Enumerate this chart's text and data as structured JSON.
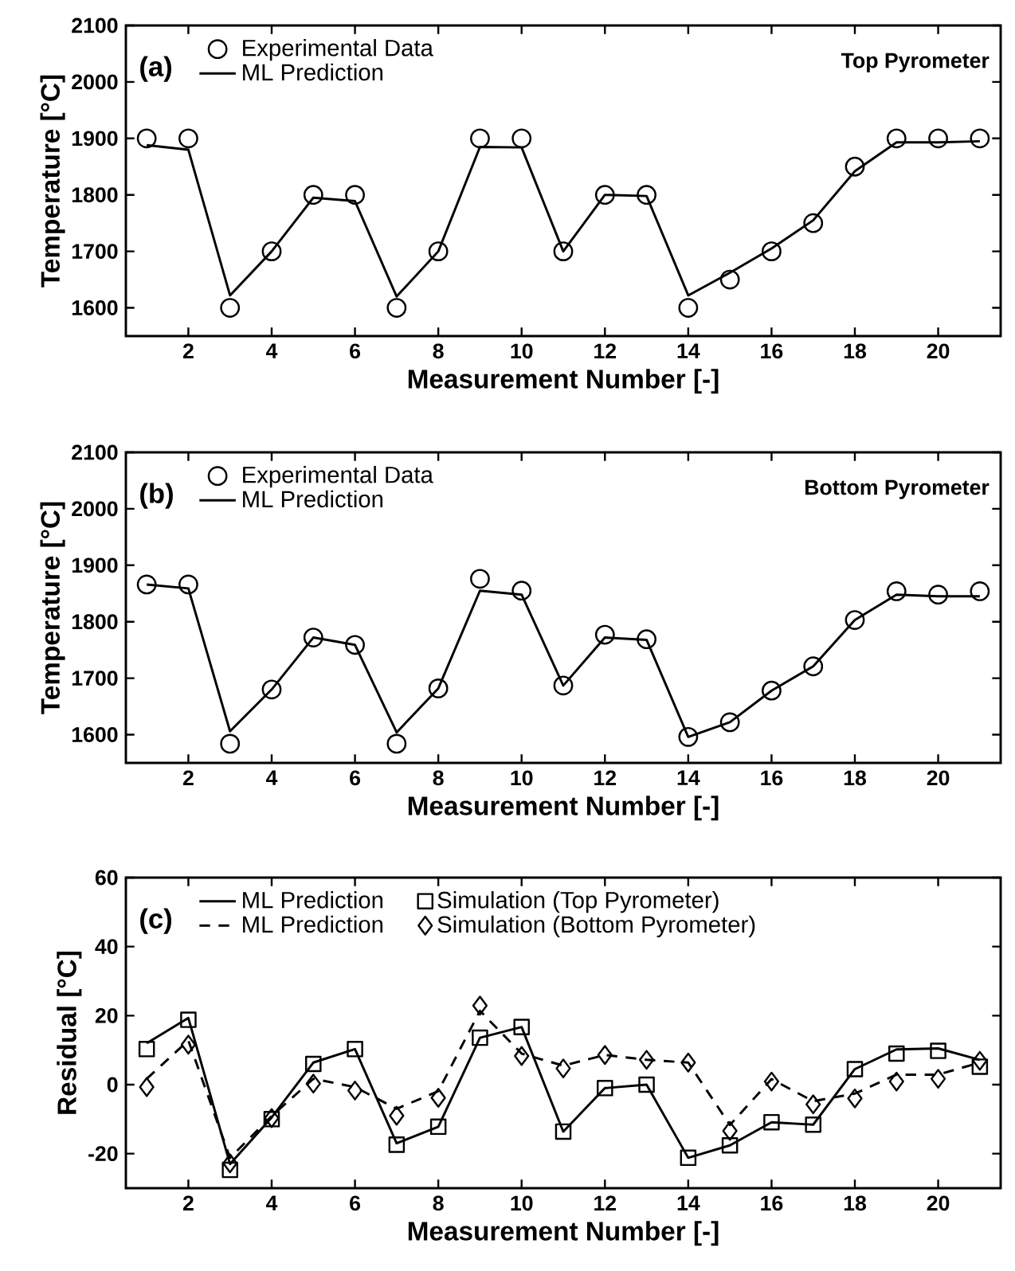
{
  "chart_data": [
    {
      "type": "line",
      "annotations": [
        "(a)",
        "Top Pyrometer"
      ],
      "xlabel": "Measurement Number [-]",
      "ylabel": "Temperature [°C]",
      "x": [
        1,
        2,
        3,
        4,
        5,
        6,
        7,
        8,
        9,
        10,
        11,
        12,
        13,
        14,
        15,
        16,
        17,
        18,
        19,
        20,
        21
      ],
      "xlim": [
        0.5,
        21.5
      ],
      "ylim": [
        1550,
        2100
      ],
      "xticks": [
        2,
        4,
        6,
        8,
        10,
        12,
        14,
        16,
        18,
        20
      ],
      "yticks": [
        1600,
        1700,
        1800,
        1900,
        2000,
        2100
      ],
      "legend": "top left",
      "series": [
        {
          "name": "Experimental Data",
          "type": "scatter",
          "marker": "circle",
          "color": "#000000",
          "values": [
            1900,
            1900,
            1600,
            1700,
            1800,
            1800,
            1600,
            1700,
            1900,
            1900,
            1700,
            1800,
            1800,
            1600,
            1650,
            1700,
            1750,
            1850,
            1900,
            1900,
            1900
          ]
        },
        {
          "name": "ML Prediction",
          "color": "#000000",
          "values": [
            1888,
            1880,
            1622,
            1700,
            1795,
            1789,
            1620,
            1700,
            1885,
            1884,
            1700,
            1800,
            1798,
            1622,
            1662,
            1705,
            1755,
            1842,
            1893,
            1893,
            1895
          ]
        }
      ]
    },
    {
      "type": "line",
      "annotations": [
        "(b)",
        "Bottom Pyrometer"
      ],
      "xlabel": "Measurement Number [-]",
      "ylabel": "Temperature [°C]",
      "x": [
        1,
        2,
        3,
        4,
        5,
        6,
        7,
        8,
        9,
        10,
        11,
        12,
        13,
        14,
        15,
        16,
        17,
        18,
        19,
        20,
        21
      ],
      "xlim": [
        0.5,
        21.5
      ],
      "ylim": [
        1550,
        2100
      ],
      "xticks": [
        2,
        4,
        6,
        8,
        10,
        12,
        14,
        16,
        18,
        20
      ],
      "yticks": [
        1600,
        1700,
        1800,
        1900,
        2000,
        2100
      ],
      "legend": "top left",
      "series": [
        {
          "name": "Experimental Data",
          "type": "scatter",
          "marker": "circle",
          "color": "#000000",
          "values": [
            1866,
            1866,
            1584,
            1680,
            1772,
            1759,
            1584,
            1682,
            1876,
            1855,
            1687,
            1777,
            1769,
            1596,
            1622,
            1678,
            1721,
            1803,
            1854,
            1848,
            1854
          ]
        },
        {
          "name": "ML Prediction",
          "color": "#000000",
          "values": [
            1866,
            1859,
            1606,
            1680,
            1772,
            1759,
            1604,
            1682,
            1855,
            1848,
            1687,
            1772,
            1768,
            1596,
            1622,
            1678,
            1721,
            1803,
            1848,
            1845,
            1845
          ]
        }
      ]
    },
    {
      "type": "line",
      "annotations": [
        "(c)"
      ],
      "xlabel": "Measurement Number [-]",
      "ylabel": "Residual [°C]",
      "x": [
        1,
        2,
        3,
        4,
        5,
        6,
        7,
        8,
        9,
        10,
        11,
        12,
        13,
        14,
        15,
        16,
        17,
        18,
        19,
        20,
        21
      ],
      "xlim": [
        0.5,
        21.5
      ],
      "ylim": [
        -30,
        60
      ],
      "xticks": [
        2,
        4,
        6,
        8,
        10,
        12,
        14,
        16,
        18,
        20
      ],
      "yticks": [
        -20,
        0,
        20,
        40,
        60
      ],
      "legend": "top left",
      "series": [
        {
          "name": "ML Prediction",
          "line_style": "solid",
          "color": "#000000",
          "values": [
            12,
            19.3,
            -23,
            -9.5,
            6.4,
            10.3,
            -17,
            -12.2,
            13.6,
            16.7,
            -13.6,
            -1,
            0,
            -21.2,
            -17.6,
            -10.9,
            -11.6,
            4.5,
            10.2,
            10.5,
            7.2
          ]
        },
        {
          "name": "Simulation (Top Pyrometer)",
          "type": "scatter",
          "marker": "square",
          "color": "#000000",
          "values": [
            10.3,
            18.8,
            -24.7,
            -10,
            6,
            10.3,
            -17.4,
            -12.2,
            13.6,
            16.7,
            -13.6,
            -1,
            0,
            -21.2,
            -17.6,
            -10.9,
            -11.6,
            4.5,
            9,
            9.8,
            5.2
          ]
        },
        {
          "name": "ML Prediction",
          "line_style": "dashed",
          "color": "#000000",
          "values": [
            1.7,
            12.8,
            -21.2,
            -9.1,
            1.7,
            -0.7,
            -7,
            -1.9,
            21.4,
            9,
            5.5,
            8.6,
            7.2,
            6.4,
            -11.7,
            1.6,
            -4.8,
            -2.6,
            2.9,
            2.9,
            6.4
          ]
        },
        {
          "name": "Simulation (Bottom Pyrometer)",
          "type": "scatter",
          "marker": "diamond",
          "color": "#000000",
          "values": [
            -0.7,
            11.6,
            -22.8,
            -9.7,
            0.3,
            -1.7,
            -9,
            -3.8,
            22.9,
            8.3,
            4.7,
            8.6,
            7.2,
            6.4,
            -13.4,
            0.9,
            -5.7,
            -4,
            0.9,
            1.7,
            6.9
          ]
        }
      ]
    }
  ]
}
